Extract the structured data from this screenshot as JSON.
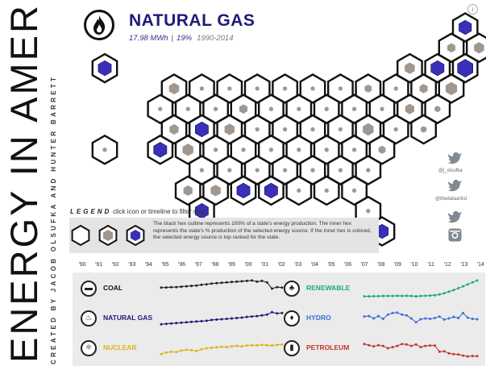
{
  "title": "ENERGY IN AMERICA",
  "credits": "CREATED BY JACOB OLSUFKA AND HUNTER BARRETT",
  "selected": {
    "name": "NATURAL GAS",
    "total": "17.98 MWh",
    "share": "19%",
    "years": "1990-2014",
    "icon": "flame-icon"
  },
  "info": "i",
  "legend": {
    "title": "LEGEND",
    "hint": "click icon or timeline to filter map",
    "text": "The black hex outline represents 100% of a state's energy production. The inner hex represents the state's % production of the selected energy source. If the inner hex is colored, the selected energy source is top ranked for the state.",
    "swatches": [
      "empty",
      "gray",
      "colored"
    ]
  },
  "colors": {
    "accent": "#3a30b8",
    "gray": "#a09791",
    "coal": "#222222",
    "natural_gas": "#1f1a7a",
    "nuclear": "#e0b21a",
    "renewable": "#1aa88a",
    "hydro": "#3b6fd4",
    "petroleum": "#c0392b"
  },
  "map": {
    "rows": [
      [
        {
          "c": 13,
          "v": 0.45,
          "top": 1
        }
      ],
      [
        {
          "c": 12,
          "v": 0.2
        },
        {
          "c": 13,
          "v": 0.3
        }
      ],
      [
        {
          "c": 0,
          "v": 0.5,
          "top": 1
        },
        {
          "c": 11,
          "v": 0.3
        },
        {
          "c": 12,
          "v": 0.5,
          "top": 1
        },
        {
          "c": 13,
          "v": 0.7,
          "top": 1
        }
      ],
      [
        {
          "c": 2,
          "v": 0.3
        },
        {
          "c": 3,
          "v": 0.05
        },
        {
          "c": 4,
          "v": 0.05
        },
        {
          "c": 5,
          "v": 0.05
        },
        {
          "c": 6,
          "v": 0.05
        },
        {
          "c": 7,
          "v": 0.05
        },
        {
          "c": 8,
          "v": 0.05
        },
        {
          "c": 9,
          "v": 0.15
        },
        {
          "c": 10,
          "v": 0.05
        },
        {
          "c": 11,
          "v": 0.2
        },
        {
          "c": 12,
          "v": 0.4
        }
      ],
      [
        {
          "c": 2,
          "v": 0.05
        },
        {
          "c": 3,
          "v": 0.05
        },
        {
          "c": 4,
          "v": 0.05
        },
        {
          "c": 5,
          "v": 0.2
        },
        {
          "c": 6,
          "v": 0.05
        },
        {
          "c": 7,
          "v": 0.05
        },
        {
          "c": 8,
          "v": 0.05
        },
        {
          "c": 9,
          "v": 0.05
        },
        {
          "c": 10,
          "v": 0.05
        },
        {
          "c": 11,
          "v": 0.25
        },
        {
          "c": 12,
          "v": 0.1
        }
      ],
      [
        {
          "c": 2,
          "v": 0.25
        },
        {
          "c": 3,
          "v": 0.5,
          "top": 1
        },
        {
          "c": 4,
          "v": 0.3
        },
        {
          "c": 5,
          "v": 0.05
        },
        {
          "c": 6,
          "v": 0.05
        },
        {
          "c": 7,
          "v": 0.05
        },
        {
          "c": 8,
          "v": 0.05
        },
        {
          "c": 9,
          "v": 0.35
        },
        {
          "c": 10,
          "v": 0.05
        },
        {
          "c": 11,
          "v": 0.1
        }
      ],
      [
        {
          "c": 0,
          "v": 0.05
        },
        {
          "c": 2,
          "v": 0.5,
          "top": 1
        },
        {
          "c": 3,
          "v": 0.35
        },
        {
          "c": 4,
          "v": 0.05
        },
        {
          "c": 5,
          "v": 0.05
        },
        {
          "c": 6,
          "v": 0.05
        },
        {
          "c": 7,
          "v": 0.05
        },
        {
          "c": 8,
          "v": 0.05
        },
        {
          "c": 9,
          "v": 0.05
        },
        {
          "c": 10,
          "v": 0.15
        }
      ],
      [
        {
          "c": 3,
          "v": 0.05
        },
        {
          "c": 4,
          "v": 0.05
        },
        {
          "c": 5,
          "v": 0.05
        },
        {
          "c": 6,
          "v": 0.05
        },
        {
          "c": 7,
          "v": 0.05
        },
        {
          "c": 8,
          "v": 0.05
        },
        {
          "c": 9,
          "v": 0.05
        }
      ],
      [
        {
          "c": 3,
          "v": 0.25
        },
        {
          "c": 4,
          "v": 0.3
        },
        {
          "c": 5,
          "v": 0.5,
          "top": 1
        },
        {
          "c": 6,
          "v": 0.5,
          "top": 1
        },
        {
          "c": 7,
          "v": 0.05
        },
        {
          "c": 8,
          "v": 0.05
        },
        {
          "c": 9,
          "v": 0.05
        }
      ],
      [
        {
          "c": 3,
          "v": 0.5,
          "top": 1
        },
        {
          "c": 9,
          "v": 0.05
        }
      ],
      [
        {
          "c": 10,
          "v": 0.45,
          "top": 1
        }
      ]
    ]
  },
  "timeline": {
    "years": [
      "'90",
      "'91",
      "'92",
      "'93",
      "'94",
      "'95",
      "'96",
      "'97",
      "'98",
      "'99",
      "'00",
      "'01",
      "'02",
      "'03",
      "'04",
      "'05",
      "'06",
      "'07",
      "'08",
      "'09",
      "'10",
      "'11",
      "'12",
      "'13",
      "'14"
    ]
  },
  "social": {
    "twitter1": "@j_olsufka",
    "twitter2": "@thedataartist",
    "icons": [
      "twitter-icon",
      "twitter-icon",
      "twitter-icon",
      "instagram-icon"
    ]
  },
  "sources": [
    {
      "name": "COAL",
      "icon": "train-icon",
      "glyph": "▬",
      "color": "#222222"
    },
    {
      "name": "NATURAL GAS",
      "icon": "flame-icon",
      "glyph": "♨",
      "color": "#1f1a7a"
    },
    {
      "name": "NUCLEAR",
      "icon": "atom-icon",
      "glyph": "⚛",
      "color": "#e0b21a"
    },
    {
      "name": "RENEWABLE",
      "icon": "leaf-icon",
      "glyph": "♣",
      "color": "#1aa88a"
    },
    {
      "name": "HYDRO",
      "icon": "water-drop-icon",
      "glyph": "♦",
      "color": "#3b6fd4"
    },
    {
      "name": "PETROLEUM",
      "icon": "oil-barrel-icon",
      "glyph": "▮",
      "color": "#c0392b"
    }
  ],
  "chart_data": [
    {
      "type": "line",
      "name": "COAL",
      "x": [
        1990,
        1991,
        1992,
        1993,
        1994,
        1995,
        1996,
        1997,
        1998,
        1999,
        2000,
        2001,
        2002,
        2003,
        2004,
        2005,
        2006,
        2007,
        2008,
        2009,
        2010,
        2011,
        2012,
        2013,
        2014
      ],
      "values": [
        0.55,
        0.56,
        0.57,
        0.58,
        0.6,
        0.62,
        0.64,
        0.66,
        0.7,
        0.72,
        0.76,
        0.78,
        0.8,
        0.82,
        0.84,
        0.86,
        0.88,
        0.9,
        0.92,
        0.86,
        0.9,
        0.82,
        0.5,
        0.58,
        0.55
      ]
    },
    {
      "type": "line",
      "name": "NATURAL GAS",
      "x": [
        1990,
        1991,
        1992,
        1993,
        1994,
        1995,
        1996,
        1997,
        1998,
        1999,
        2000,
        2001,
        2002,
        2003,
        2004,
        2005,
        2006,
        2007,
        2008,
        2009,
        2010,
        2011,
        2012,
        2013,
        2014
      ],
      "values": [
        0.2,
        0.22,
        0.24,
        0.26,
        0.28,
        0.3,
        0.32,
        0.34,
        0.36,
        0.38,
        0.42,
        0.44,
        0.46,
        0.48,
        0.5,
        0.52,
        0.54,
        0.58,
        0.6,
        0.62,
        0.66,
        0.7,
        0.82,
        0.76,
        0.78
      ]
    },
    {
      "type": "line",
      "name": "NUCLEAR",
      "x": [
        1990,
        1991,
        1992,
        1993,
        1994,
        1995,
        1996,
        1997,
        1998,
        1999,
        2000,
        2001,
        2002,
        2003,
        2004,
        2005,
        2006,
        2007,
        2008,
        2009,
        2010,
        2011,
        2012,
        2013,
        2014
      ],
      "values": [
        0.2,
        0.28,
        0.32,
        0.3,
        0.38,
        0.42,
        0.4,
        0.36,
        0.44,
        0.5,
        0.52,
        0.55,
        0.58,
        0.56,
        0.6,
        0.62,
        0.6,
        0.64,
        0.66,
        0.65,
        0.68,
        0.66,
        0.64,
        0.68,
        0.7
      ]
    },
    {
      "type": "line",
      "name": "RENEWABLE",
      "x": [
        1990,
        1991,
        1992,
        1993,
        1994,
        1995,
        1996,
        1997,
        1998,
        1999,
        2000,
        2001,
        2002,
        2003,
        2004,
        2005,
        2006,
        2007,
        2008,
        2009,
        2010,
        2011,
        2012,
        2013,
        2014
      ],
      "values": [
        0.1,
        0.1,
        0.11,
        0.11,
        0.12,
        0.12,
        0.12,
        0.13,
        0.12,
        0.13,
        0.12,
        0.1,
        0.12,
        0.13,
        0.14,
        0.16,
        0.2,
        0.26,
        0.34,
        0.42,
        0.52,
        0.62,
        0.72,
        0.82,
        0.92
      ]
    },
    {
      "type": "line",
      "name": "HYDRO",
      "x": [
        1990,
        1991,
        1992,
        1993,
        1994,
        1995,
        1996,
        1997,
        1998,
        1999,
        2000,
        2001,
        2002,
        2003,
        2004,
        2005,
        2006,
        2007,
        2008,
        2009,
        2010,
        2011,
        2012,
        2013,
        2014
      ],
      "values": [
        0.6,
        0.62,
        0.5,
        0.62,
        0.48,
        0.7,
        0.78,
        0.8,
        0.7,
        0.66,
        0.5,
        0.3,
        0.46,
        0.5,
        0.48,
        0.52,
        0.6,
        0.44,
        0.5,
        0.58,
        0.52,
        0.78,
        0.54,
        0.48,
        0.46
      ]
    },
    {
      "type": "line",
      "name": "PETROLEUM",
      "x": [
        1990,
        1991,
        1992,
        1993,
        1994,
        1995,
        1996,
        1997,
        1998,
        1999,
        2000,
        2001,
        2002,
        2003,
        2004,
        2005,
        2006,
        2007,
        2008,
        2009,
        2010,
        2011,
        2012,
        2013,
        2014
      ],
      "values": [
        0.72,
        0.66,
        0.6,
        0.66,
        0.62,
        0.5,
        0.56,
        0.62,
        0.72,
        0.7,
        0.62,
        0.7,
        0.56,
        0.62,
        0.64,
        0.64,
        0.32,
        0.34,
        0.24,
        0.2,
        0.18,
        0.12,
        0.08,
        0.1,
        0.09
      ]
    }
  ]
}
